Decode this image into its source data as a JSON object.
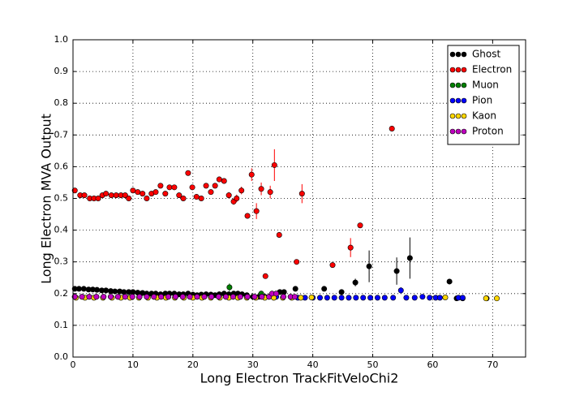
{
  "chart_data": {
    "type": "scatter",
    "xlabel": "Long Electron TrackFitVeloChi2",
    "ylabel": "Long Electron MVA Output",
    "xlim": [
      0,
      75.5
    ],
    "ylim": [
      0,
      1
    ],
    "xticks": [
      0,
      10,
      20,
      30,
      40,
      50,
      60,
      70
    ],
    "yticks": [
      {
        "value": 0,
        "label": "0.0"
      },
      0.1,
      0.2,
      0.3,
      0.4,
      0.5,
      0.6,
      0.7,
      0.8,
      0.9,
      {
        "value": 1,
        "label": "1.0"
      }
    ],
    "grid": true,
    "legend": "upper right",
    "series": [
      {
        "name": "Ghost",
        "color": "#000000",
        "x": [
          0.3,
          1.0,
          1.8,
          2.6,
          3.3,
          4.0,
          4.8,
          5.5,
          6.3,
          7.0,
          7.8,
          8.5,
          9.3,
          10.0,
          10.8,
          11.6,
          12.3,
          13.1,
          13.8,
          14.6,
          15.4,
          16.1,
          16.9,
          17.7,
          18.4,
          19.2,
          20.0,
          20.7,
          21.4,
          22.2,
          23.0,
          23.7,
          24.4,
          25.2,
          26.0,
          26.8,
          27.5,
          28.2,
          29.0,
          30.0,
          31.0,
          32.0,
          33.0,
          34.5,
          35.2,
          37.1,
          41.9,
          44.8,
          47.1,
          49.4,
          54.0,
          56.2,
          62.8,
          64.0,
          65.0,
          69.0
        ],
        "values": [
          0.215,
          0.215,
          0.215,
          0.213,
          0.213,
          0.212,
          0.21,
          0.21,
          0.208,
          0.207,
          0.207,
          0.205,
          0.205,
          0.205,
          0.203,
          0.202,
          0.2,
          0.2,
          0.2,
          0.198,
          0.2,
          0.2,
          0.2,
          0.198,
          0.198,
          0.2,
          0.197,
          0.195,
          0.197,
          0.198,
          0.197,
          0.195,
          0.198,
          0.2,
          0.198,
          0.2,
          0.2,
          0.198,
          0.195,
          0.19,
          0.19,
          0.19,
          0.192,
          0.205,
          0.205,
          0.215,
          0.215,
          0.205,
          0.235,
          0.286,
          0.271,
          0.312,
          0.238,
          0.185,
          0.185,
          0.185
        ],
        "errors": [
          0.003,
          0.003,
          0.003,
          0.003,
          0.003,
          0.003,
          0.003,
          0.003,
          0.003,
          0.003,
          0.003,
          0.003,
          0.003,
          0.003,
          0.003,
          0.003,
          0.003,
          0.003,
          0.003,
          0.003,
          0.003,
          0.003,
          0.003,
          0.003,
          0.003,
          0.003,
          0.003,
          0.003,
          0.003,
          0.003,
          0.003,
          0.003,
          0.003,
          0.003,
          0.003,
          0.003,
          0.003,
          0.003,
          0.003,
          0.003,
          0.003,
          0.003,
          0.003,
          0.004,
          0.004,
          0.005,
          0.005,
          0.006,
          0.012,
          0.05,
          0.043,
          0.065,
          0.004,
          0.003,
          0.003,
          0.003
        ]
      },
      {
        "name": "Electron",
        "color": "#ff0000",
        "x": [
          0.3,
          1.2,
          1.9,
          2.8,
          3.5,
          4.2,
          4.9,
          5.5,
          6.4,
          7.2,
          8.0,
          8.7,
          9.3,
          10.0,
          10.8,
          11.6,
          12.3,
          13.1,
          13.8,
          14.6,
          15.4,
          16.1,
          16.9,
          17.7,
          18.4,
          19.2,
          19.9,
          20.6,
          21.4,
          22.2,
          23.0,
          23.7,
          24.4,
          25.2,
          26.0,
          26.8,
          27.3,
          28.1,
          29.1,
          29.8,
          30.6,
          31.4,
          32.1,
          32.9,
          33.6,
          34.4,
          37.3,
          38.2,
          43.3,
          46.3,
          47.9,
          53.2
        ],
        "values": [
          0.525,
          0.51,
          0.51,
          0.5,
          0.5,
          0.5,
          0.51,
          0.515,
          0.51,
          0.51,
          0.51,
          0.51,
          0.5,
          0.525,
          0.52,
          0.515,
          0.5,
          0.515,
          0.52,
          0.54,
          0.515,
          0.535,
          0.535,
          0.51,
          0.5,
          0.58,
          0.535,
          0.505,
          0.5,
          0.54,
          0.52,
          0.54,
          0.56,
          0.555,
          0.51,
          0.49,
          0.5,
          0.525,
          0.445,
          0.575,
          0.46,
          0.53,
          0.255,
          0.52,
          0.605,
          0.385,
          0.3,
          0.515,
          0.29,
          0.345,
          0.415,
          0.72
        ],
        "errors": [
          0.004,
          0.004,
          0.004,
          0.004,
          0.004,
          0.004,
          0.004,
          0.004,
          0.004,
          0.004,
          0.004,
          0.004,
          0.004,
          0.004,
          0.004,
          0.004,
          0.004,
          0.004,
          0.004,
          0.004,
          0.004,
          0.005,
          0.005,
          0.005,
          0.005,
          0.006,
          0.006,
          0.006,
          0.006,
          0.006,
          0.008,
          0.008,
          0.008,
          0.008,
          0.01,
          0.01,
          0.012,
          0.012,
          0.008,
          0.02,
          0.025,
          0.02,
          0.005,
          0.02,
          0.05,
          0.005,
          0.005,
          0.03,
          0.005,
          0.03,
          0.005,
          0.005
        ]
      },
      {
        "name": "Muon",
        "color": "#008000",
        "x": [
          26.1,
          31.4
        ],
        "values": [
          0.22,
          0.2
        ],
        "errors": [
          0.012,
          0.005
        ]
      },
      {
        "name": "Pion",
        "color": "#0000ff",
        "x": [
          0.3,
          1.5,
          2.7,
          3.9,
          5.1,
          6.3,
          7.5,
          8.7,
          9.9,
          11.1,
          12.3,
          13.5,
          14.7,
          15.9,
          17.1,
          18.3,
          19.5,
          20.7,
          21.9,
          23.1,
          24.3,
          25.5,
          26.7,
          27.9,
          29.1,
          30.3,
          31.5,
          32.7,
          33.9,
          35.1,
          36.3,
          37.5,
          38.7,
          40.0,
          41.2,
          42.4,
          43.6,
          44.8,
          46.0,
          47.2,
          48.4,
          49.6,
          50.8,
          52.0,
          53.4,
          54.7,
          55.6,
          57.0,
          58.3,
          59.5,
          60.5,
          61.2,
          64.3,
          65.0
        ],
        "values": [
          0.19,
          0.19,
          0.19,
          0.19,
          0.19,
          0.19,
          0.19,
          0.19,
          0.19,
          0.19,
          0.19,
          0.19,
          0.19,
          0.19,
          0.19,
          0.19,
          0.19,
          0.19,
          0.19,
          0.19,
          0.19,
          0.19,
          0.19,
          0.19,
          0.19,
          0.19,
          0.19,
          0.19,
          0.19,
          0.19,
          0.19,
          0.187,
          0.187,
          0.187,
          0.187,
          0.187,
          0.187,
          0.187,
          0.187,
          0.187,
          0.187,
          0.187,
          0.187,
          0.187,
          0.187,
          0.21,
          0.187,
          0.187,
          0.19,
          0.187,
          0.187,
          0.187,
          0.187,
          0.187
        ],
        "errors": [
          0.002,
          0.002,
          0.002,
          0.002,
          0.002,
          0.002,
          0.002,
          0.002,
          0.002,
          0.002,
          0.002,
          0.002,
          0.002,
          0.002,
          0.002,
          0.002,
          0.002,
          0.002,
          0.002,
          0.002,
          0.002,
          0.002,
          0.002,
          0.002,
          0.002,
          0.002,
          0.002,
          0.002,
          0.002,
          0.002,
          0.002,
          0.002,
          0.002,
          0.002,
          0.002,
          0.002,
          0.002,
          0.002,
          0.002,
          0.002,
          0.002,
          0.002,
          0.003,
          0.003,
          0.003,
          0.01,
          0.003,
          0.003,
          0.003,
          0.003,
          0.003,
          0.003,
          0.003,
          0.003
        ]
      },
      {
        "name": "Kaon",
        "color": "#ffd700",
        "x": [
          0.5,
          2.0,
          3.5,
          5.0,
          6.5,
          8.0,
          9.5,
          11.0,
          12.5,
          14.0,
          15.5,
          17.0,
          18.5,
          20.0,
          21.5,
          23.0,
          24.5,
          26.0,
          27.5,
          29.0,
          30.5,
          32.0,
          33.5,
          35.0,
          36.5,
          38.0,
          39.8,
          62.1,
          68.9,
          70.7
        ],
        "values": [
          0.187,
          0.187,
          0.187,
          0.187,
          0.187,
          0.187,
          0.187,
          0.187,
          0.187,
          0.187,
          0.187,
          0.187,
          0.187,
          0.187,
          0.187,
          0.187,
          0.187,
          0.187,
          0.187,
          0.187,
          0.187,
          0.187,
          0.187,
          0.187,
          0.187,
          0.187,
          0.188,
          0.188,
          0.185,
          0.185
        ],
        "errors": [
          0.002,
          0.002,
          0.002,
          0.002,
          0.002,
          0.002,
          0.002,
          0.002,
          0.002,
          0.002,
          0.002,
          0.002,
          0.002,
          0.002,
          0.002,
          0.002,
          0.002,
          0.002,
          0.002,
          0.002,
          0.002,
          0.002,
          0.002,
          0.002,
          0.002,
          0.002,
          0.003,
          0.004,
          0.003,
          0.003
        ]
      },
      {
        "name": "Proton",
        "color": "#bf00bf",
        "x": [
          0.3,
          1.5,
          2.7,
          3.9,
          5.1,
          6.3,
          7.5,
          8.7,
          9.9,
          11.1,
          12.3,
          13.5,
          14.7,
          15.9,
          17.1,
          18.3,
          19.5,
          20.7,
          21.9,
          23.1,
          24.3,
          25.5,
          26.7,
          27.9,
          29.1,
          30.3,
          31.5,
          32.7,
          33.2,
          33.9,
          35.1,
          36.3,
          37.0
        ],
        "values": [
          0.19,
          0.19,
          0.19,
          0.19,
          0.19,
          0.19,
          0.19,
          0.19,
          0.19,
          0.19,
          0.19,
          0.19,
          0.19,
          0.19,
          0.19,
          0.19,
          0.19,
          0.19,
          0.19,
          0.19,
          0.19,
          0.19,
          0.19,
          0.19,
          0.19,
          0.19,
          0.19,
          0.19,
          0.2,
          0.2,
          0.19,
          0.19,
          0.19
        ],
        "errors": [
          0.002,
          0.002,
          0.002,
          0.002,
          0.002,
          0.002,
          0.002,
          0.002,
          0.002,
          0.002,
          0.002,
          0.002,
          0.002,
          0.002,
          0.002,
          0.002,
          0.002,
          0.002,
          0.002,
          0.002,
          0.002,
          0.002,
          0.002,
          0.002,
          0.002,
          0.002,
          0.002,
          0.002,
          0.004,
          0.004,
          0.002,
          0.002,
          0.002
        ]
      }
    ]
  }
}
